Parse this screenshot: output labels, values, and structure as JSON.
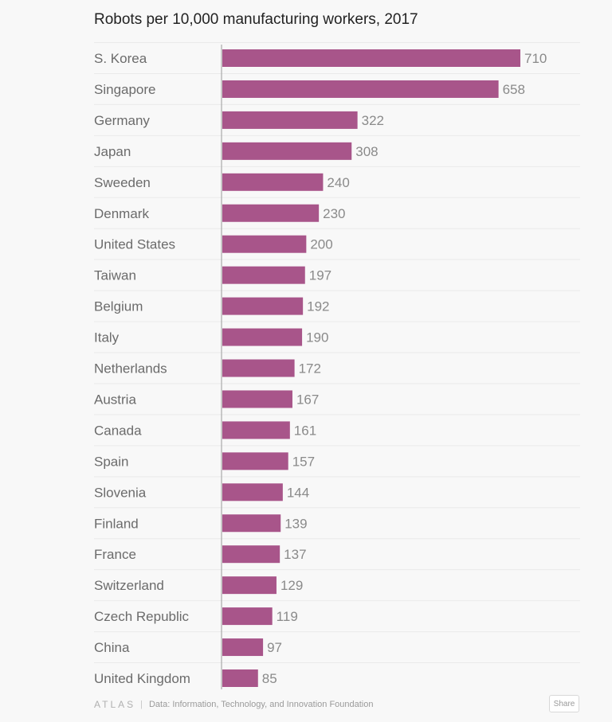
{
  "chart_data": {
    "type": "bar",
    "orientation": "horizontal",
    "title": "Robots per 10,000 manufacturing workers, 2017",
    "categories": [
      "S. Korea",
      "Singapore",
      "Germany",
      "Japan",
      "Sweeden",
      "Denmark",
      "United States",
      "Taiwan",
      "Belgium",
      "Italy",
      "Netherlands",
      "Austria",
      "Canada",
      "Spain",
      "Slovenia",
      "Finland",
      "France",
      "Switzerland",
      "Czech Republic",
      "China",
      "United Kingdom"
    ],
    "values": [
      710,
      658,
      322,
      308,
      240,
      230,
      200,
      197,
      192,
      190,
      172,
      167,
      161,
      157,
      144,
      139,
      137,
      129,
      119,
      97,
      85
    ],
    "value_labels": [
      "710",
      "658",
      "322",
      "308",
      "240",
      "230",
      "200",
      "197",
      "192",
      "190",
      "172",
      "167",
      "161",
      "157",
      "144",
      "139",
      "137",
      "129",
      "119",
      "97",
      "85"
    ],
    "xlim": [
      0,
      710
    ],
    "grid": true,
    "bar_color": "#a8558a"
  },
  "footer": {
    "logo": "ATLAS",
    "separator": "|",
    "source": "Data:  Information, Technology, and Innovation Foundation",
    "share_label": "Share"
  }
}
